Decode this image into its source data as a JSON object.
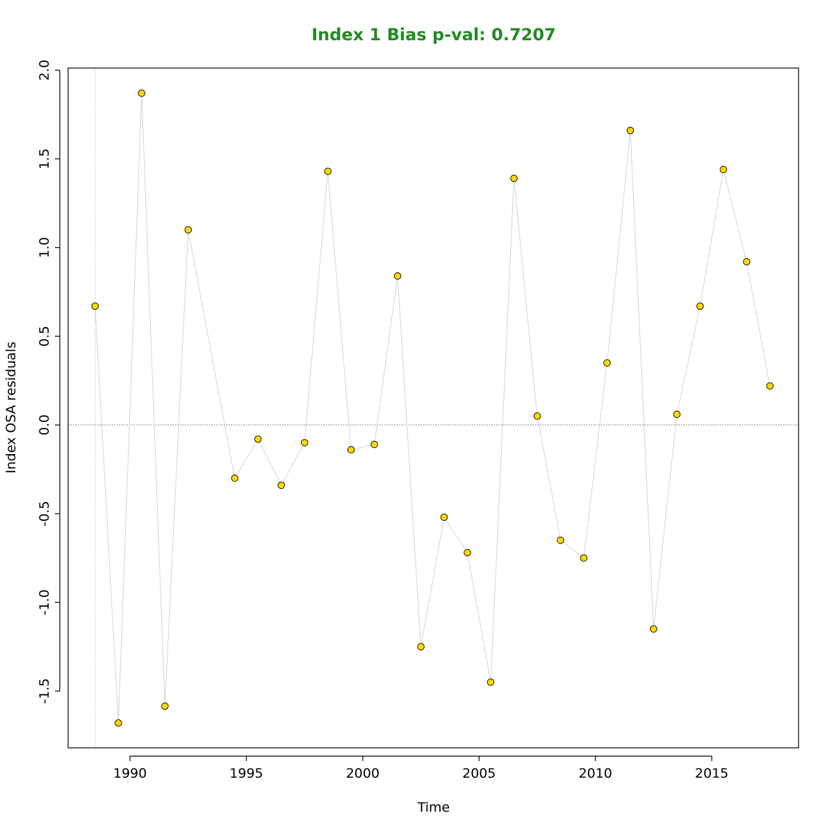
{
  "chart_data": {
    "type": "scatter",
    "title": "Index 1 Bias p-val: 0.7207",
    "title_color": "#228b22",
    "x_label": "Time",
    "y_label": "Index OSA residuals",
    "x": [
      1988.5,
      1989.5,
      1990.5,
      1991.5,
      1992.5,
      1994.5,
      1995.5,
      1996.5,
      1997.5,
      1998.5,
      1999.5,
      2000.5,
      2001.5,
      2002.5,
      2003.5,
      2004.5,
      2005.5,
      2006.5,
      2007.5,
      2008.5,
      2009.5,
      2010.5,
      2011.5,
      2012.5,
      2013.5,
      2014.5,
      2015.5,
      2016.5,
      2017.5
    ],
    "values": [
      0.67,
      -1.68,
      1.87,
      -1.585,
      1.1,
      -0.3,
      -0.08,
      -0.34,
      -0.1,
      1.43,
      -0.14,
      -0.11,
      0.84,
      -1.25,
      -0.52,
      -0.72,
      -1.45,
      1.39,
      0.05,
      -0.65,
      -0.75,
      0.35,
      1.66,
      -1.15,
      0.06,
      0.67,
      1.44,
      0.92,
      0.22
    ],
    "color": "#ffd700",
    "line_color": "#d3d3d3",
    "xlim": [
      1987.34,
      2018.73
    ],
    "ylim": [
      -1.82,
      2.012
    ],
    "xticks": [
      1990,
      1995,
      2000,
      2005,
      2010,
      2015
    ],
    "yticks": [
      -1.5,
      {
        "value": -1.0,
        "label": "-1.0"
      },
      -0.5,
      {
        "value": 0.0,
        "label": "0.0"
      },
      0.5,
      {
        "value": 1.0,
        "label": "1.0"
      },
      1.5,
      {
        "value": 2.0,
        "label": "2.0"
      }
    ],
    "hline": 0,
    "vline": 1988.5
  }
}
